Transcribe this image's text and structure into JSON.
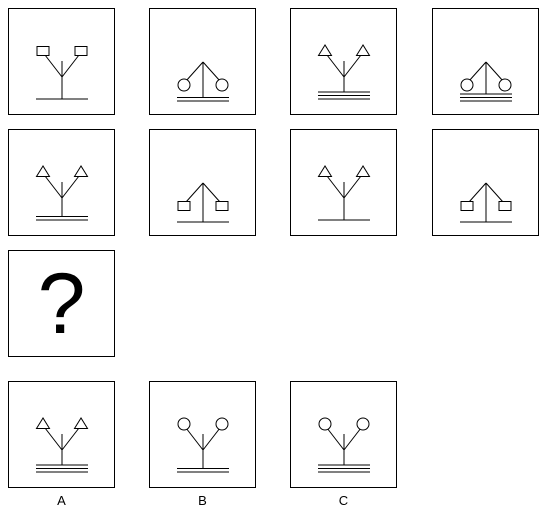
{
  "question_cell": {
    "text": "?"
  },
  "sequence": [
    {
      "branch": "fork-up",
      "terminal": "square",
      "lines": 1
    },
    {
      "branch": "tent-down",
      "terminal": "circle",
      "lines": 2
    },
    {
      "branch": "fork-up",
      "terminal": "triangle",
      "lines": 3
    },
    {
      "branch": "tent-down",
      "terminal": "circle",
      "lines": 3
    },
    {
      "branch": "fork-up",
      "terminal": "triangle",
      "lines": 2
    },
    {
      "branch": "tent-down",
      "terminal": "square",
      "lines": 1
    },
    {
      "branch": "fork-up",
      "terminal": "triangle",
      "lines": 1
    },
    {
      "branch": "tent-down",
      "terminal": "square",
      "lines": 1
    }
  ],
  "options": [
    {
      "label": "A",
      "branch": "fork-up",
      "terminal": "triangle",
      "lines": 3
    },
    {
      "label": "B",
      "branch": "fork-up",
      "terminal": "circle",
      "lines": 2
    },
    {
      "label": "C",
      "branch": "fork-up",
      "terminal": "circle",
      "lines": 3
    }
  ]
}
